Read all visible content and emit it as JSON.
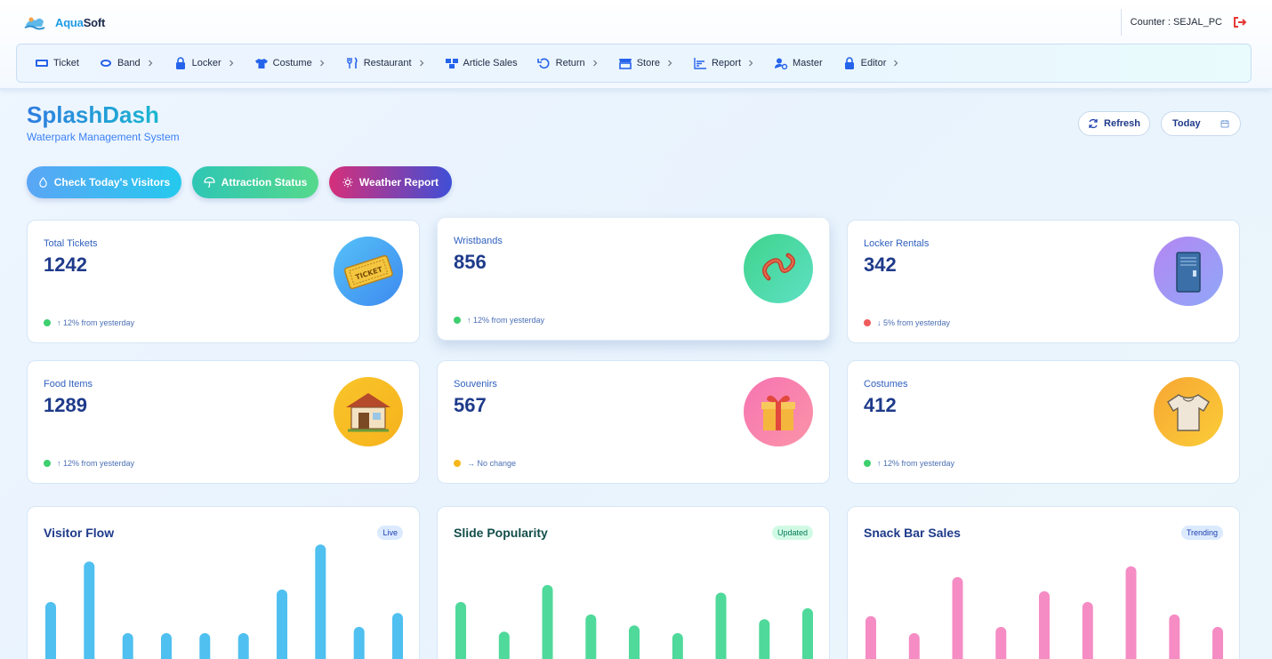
{
  "brand": {
    "part1": "Aqua",
    "part2": "Soft"
  },
  "counter": {
    "text": "Counter : SEJAL_PC"
  },
  "nav": [
    {
      "label": "Ticket",
      "icon": "ticket-icon",
      "chevron": false
    },
    {
      "label": "Band",
      "icon": "band-icon",
      "chevron": true
    },
    {
      "label": "Locker",
      "icon": "lock-icon",
      "chevron": true
    },
    {
      "label": "Costume",
      "icon": "shirt-icon",
      "chevron": true
    },
    {
      "label": "Restaurant",
      "icon": "utensils-icon",
      "chevron": true
    },
    {
      "label": "Article Sales",
      "icon": "boxes-icon",
      "chevron": false
    },
    {
      "label": "Return",
      "icon": "undo-icon",
      "chevron": true
    },
    {
      "label": "Store",
      "icon": "store-icon",
      "chevron": true
    },
    {
      "label": "Report",
      "icon": "chart-icon",
      "chevron": true
    },
    {
      "label": "Master",
      "icon": "user-gear-icon",
      "chevron": false
    },
    {
      "label": "Editor",
      "icon": "lock-icon",
      "chevron": true
    }
  ],
  "page": {
    "title": "SplashDash",
    "subtitle": "Waterpark Management System",
    "refresh_label": "Refresh",
    "date_value": "Today"
  },
  "quick_actions": [
    {
      "label": "Check Today's Visitors",
      "icon": "droplet-icon"
    },
    {
      "label": "Attraction Status",
      "icon": "umbrella-icon"
    },
    {
      "label": "Weather Report",
      "icon": "sun-icon"
    }
  ],
  "stats": [
    {
      "label": "Total Tickets",
      "value": "1242",
      "trend": "↑ 12% from yesterday",
      "status": "up",
      "color": "#3ecf6e",
      "icon": "ticket-icon"
    },
    {
      "label": "Wristbands",
      "value": "856",
      "trend": "↑ 12% from yesterday",
      "status": "up",
      "color": "#3ecf6e",
      "icon": "wristband-icon"
    },
    {
      "label": "Locker Rentals",
      "value": "342",
      "trend": "↓ 5% from yesterday",
      "status": "down",
      "color": "#ef5b5b",
      "icon": "locker-icon"
    },
    {
      "label": "Food Items",
      "value": "1289",
      "trend": "↑ 12% from yesterday",
      "status": "up",
      "color": "#3ecf6e",
      "icon": "food-stall-icon"
    },
    {
      "label": "Souvenirs",
      "value": "567",
      "trend": "→ No change",
      "status": "neutral",
      "color": "#f5b81a",
      "icon": "gift-icon"
    },
    {
      "label": "Costumes",
      "value": "412",
      "trend": "↑ 12% from yesterday",
      "status": "up",
      "color": "#3ecf6e",
      "icon": "tshirt-icon"
    }
  ],
  "chart_data": [
    {
      "type": "bar",
      "title": "Visitor Flow",
      "badge": "Live",
      "values": [
        20,
        46,
        0,
        0,
        0,
        0,
        28,
        57,
        4,
        13
      ],
      "color": "#4fc0f0",
      "title_color": "#1e3a8a",
      "badge_bg": "#dbeafe",
      "badge_fg": "#1e40af"
    },
    {
      "type": "bar",
      "title": "Slide Popularity",
      "badge": "Updated",
      "values": [
        20,
        1,
        31,
        12,
        5,
        0,
        26,
        9,
        16
      ],
      "color": "#4fd99a",
      "title_color": "#134e4a",
      "badge_bg": "#d1fae5",
      "badge_fg": "#047857"
    },
    {
      "type": "bar",
      "title": "Snack Bar Sales",
      "badge": "Trending",
      "values": [
        11,
        0,
        36,
        4,
        27,
        20,
        43,
        12,
        4
      ],
      "color": "#f58cc4",
      "title_color": "#1e3a8a",
      "badge_bg": "#dbeafe",
      "badge_fg": "#1e40af"
    }
  ]
}
